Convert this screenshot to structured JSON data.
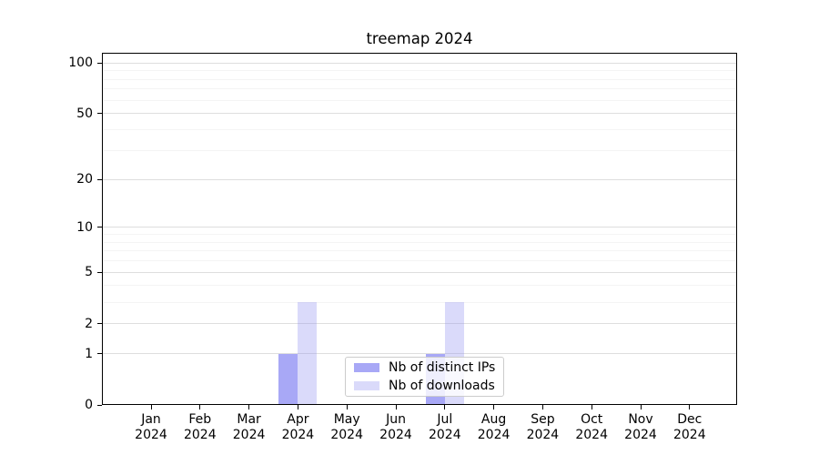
{
  "chart_data": {
    "type": "bar",
    "title": "treemap 2024",
    "categories": [
      "Jan",
      "Feb",
      "Mar",
      "Apr",
      "May",
      "Jun",
      "Jul",
      "Aug",
      "Sep",
      "Oct",
      "Nov",
      "Dec"
    ],
    "x_axis": {
      "year": "2024"
    },
    "series": [
      {
        "name": "Nb of distinct IPs",
        "color": "rgba(110,110,240,0.6)",
        "values": [
          0,
          0,
          0,
          1,
          0,
          0,
          1,
          0,
          0,
          0,
          0,
          0
        ]
      },
      {
        "name": "Nb of downloads",
        "color": "rgba(150,150,240,0.35)",
        "values": [
          0,
          0,
          0,
          3,
          0,
          0,
          3,
          0,
          0,
          0,
          0,
          0
        ]
      }
    ],
    "y_axis": {
      "scale": "log1p",
      "ticks": [
        0,
        1,
        2,
        5,
        10,
        20,
        50,
        100
      ],
      "minor_ticks": [
        3,
        4,
        6,
        7,
        8,
        9,
        30,
        40,
        60,
        70,
        80,
        90
      ],
      "ylim": [
        0,
        115
      ]
    },
    "grid": true,
    "legend_position": "lower-center-inside"
  },
  "colors": {
    "grid_major": "#dedede",
    "grid_minor": "#f4f4f4",
    "spine": "#000000",
    "tick": "#000000",
    "legend_border": "#cccccc"
  }
}
